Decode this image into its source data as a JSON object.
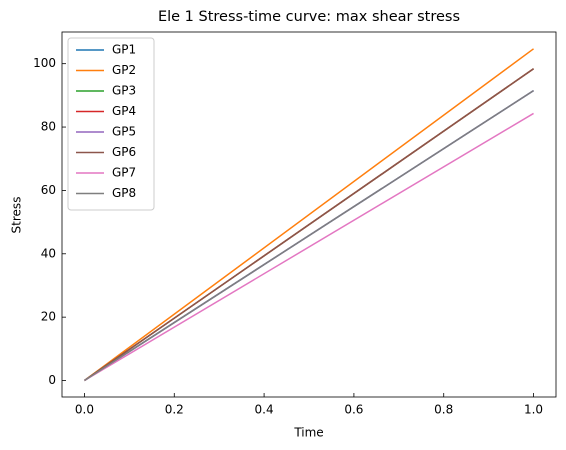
{
  "chart_data": {
    "type": "line",
    "title": "Ele 1 Stress-time curve: max shear stress",
    "xlabel": "Time",
    "ylabel": "Stress",
    "x": [
      0,
      1
    ],
    "series": [
      {
        "name": "GP1",
        "color": "#1f77b4",
        "values": [
          0,
          91.5
        ]
      },
      {
        "name": "GP2",
        "color": "#ff7f0e",
        "values": [
          0,
          104.7
        ]
      },
      {
        "name": "GP3",
        "color": "#2ca02c",
        "values": [
          0,
          98.4
        ]
      },
      {
        "name": "GP4",
        "color": "#d62728",
        "values": [
          0,
          98.4
        ]
      },
      {
        "name": "GP5",
        "color": "#9467bd",
        "values": [
          0,
          91.5
        ]
      },
      {
        "name": "GP6",
        "color": "#8c564b",
        "values": [
          0,
          98.4
        ]
      },
      {
        "name": "GP7",
        "color": "#e377c2",
        "values": [
          0,
          84.3
        ]
      },
      {
        "name": "GP8",
        "color": "#7f7f7f",
        "values": [
          0,
          91.5
        ]
      }
    ],
    "xlim": [
      -0.05,
      1.05
    ],
    "xticks": [
      {
        "value": 0,
        "label": "0.0"
      },
      0.2,
      0.4,
      0.6,
      0.8,
      {
        "value": 1,
        "label": "1.0"
      }
    ],
    "ylim": [
      -5.2,
      110
    ],
    "yticks": [
      0,
      20,
      40,
      60,
      80,
      100
    ],
    "legend": "upper left"
  }
}
